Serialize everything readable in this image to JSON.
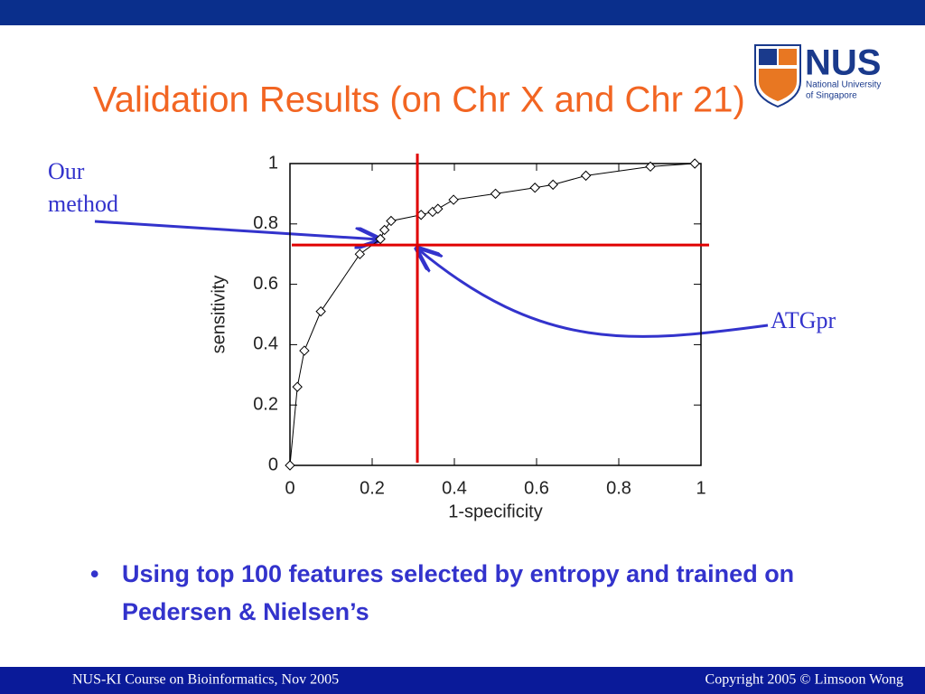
{
  "slide": {
    "title": "Validation Results (on Chr X and Chr 21)",
    "logo": {
      "name": "NUS",
      "line1": "National University",
      "line2": "of Singapore"
    },
    "bullet": "Using top 100 features selected by entropy and trained on Pedersen & Nielsen’s",
    "footer_left": "NUS-KI Course on  Bioinformatics, Nov 2005",
    "footer_right": "Copyright 2005 © Limsoon Wong"
  },
  "chart_data": {
    "type": "line",
    "color": "#000000",
    "x": [
      0,
      0.018,
      0.035,
      0.075,
      0.17,
      0.22,
      0.23,
      0.246,
      0.319,
      0.347,
      0.36,
      0.398,
      0.5,
      0.596,
      0.64,
      0.72,
      0.877,
      0.985
    ],
    "values": [
      0,
      0.26,
      0.38,
      0.51,
      0.7,
      0.75,
      0.78,
      0.81,
      0.83,
      0.84,
      0.85,
      0.88,
      0.9,
      0.92,
      0.93,
      0.96,
      0.99,
      1.0
    ],
    "xlabel": "1-specificity",
    "ylabel": "sensitivity",
    "xlim": [
      0,
      1
    ],
    "ylim": [
      0,
      1
    ],
    "xticks": [
      0,
      0.2,
      0.4,
      0.6,
      0.8,
      1
    ],
    "yticks": [
      0,
      0.2,
      0.4,
      0.6,
      0.8,
      1
    ],
    "reference_lines": {
      "x": 0.31,
      "y": 0.73,
      "color": "#e00000"
    },
    "annotations": {
      "our_method": "Our method",
      "atgpr": "ATGpr"
    }
  }
}
